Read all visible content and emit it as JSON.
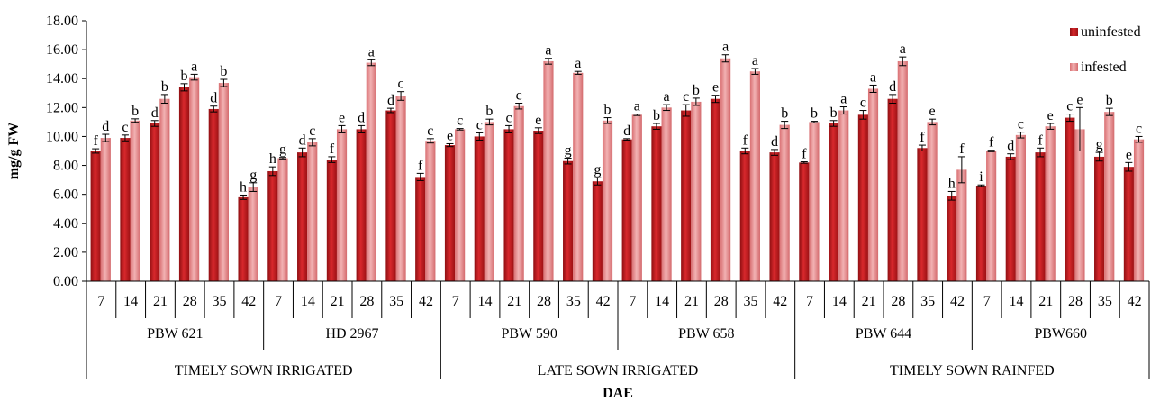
{
  "chart_data": {
    "type": "bar",
    "ylabel": "mg/g FW",
    "xlabel": "DAE",
    "ylim": [
      0,
      18
    ],
    "y_ticks": [
      "0.00",
      "2.00",
      "4.00",
      "6.00",
      "8.00",
      "10.00",
      "12.00",
      "14.00",
      "16.00",
      "18.00"
    ],
    "grid": false,
    "legend_position": "top-right",
    "colors": {
      "uninfested": "#c4161c",
      "infested": "#e58a8c"
    },
    "groups": [
      {
        "name": "TIMELY SOWN IRRIGATED",
        "varieties": [
          "PBW 621",
          "HD 2967"
        ]
      },
      {
        "name": "LATE SOWN IRRIGATED",
        "varieties": [
          "PBW 590",
          "PBW 658"
        ]
      },
      {
        "name": "TIMELY SOWN RAINFED",
        "varieties": [
          "PBW 644",
          "PBW660"
        ]
      }
    ],
    "varieties": [
      {
        "name": "PBW 621",
        "days": [
          "7",
          "14",
          "21",
          "28",
          "35",
          "42"
        ],
        "uninfested": [
          9.0,
          9.9,
          10.9,
          13.4,
          11.9,
          5.8
        ],
        "infested": [
          9.9,
          11.1,
          12.6,
          14.1,
          13.7,
          6.5
        ],
        "letters_uninfested": [
          "f",
          "c",
          "d",
          "b",
          "d",
          "h"
        ],
        "letters_infested": [
          "d",
          "b",
          "b",
          "a",
          "b",
          "g"
        ],
        "err_uninfested": [
          0.15,
          0.2,
          0.2,
          0.25,
          0.2,
          0.15
        ],
        "err_infested": [
          0.25,
          0.12,
          0.3,
          0.2,
          0.25,
          0.3
        ]
      },
      {
        "name": "HD 2967",
        "days": [
          "7",
          "14",
          "21",
          "28",
          "35",
          "42"
        ],
        "uninfested": [
          7.6,
          8.9,
          8.4,
          10.5,
          11.8,
          7.2
        ],
        "infested": [
          8.5,
          9.6,
          10.5,
          15.1,
          12.8,
          9.7
        ],
        "letters_uninfested": [
          "h",
          "d",
          "f",
          "d",
          "d",
          "f"
        ],
        "letters_infested": [
          "g",
          "c",
          "e",
          "a",
          "c",
          "c"
        ],
        "err_uninfested": [
          0.3,
          0.3,
          0.2,
          0.25,
          0.15,
          0.25
        ],
        "err_infested": [
          0.05,
          0.25,
          0.25,
          0.2,
          0.3,
          0.15
        ]
      },
      {
        "name": "PBW 590",
        "days": [
          "7",
          "14",
          "21",
          "28",
          "35",
          "42"
        ],
        "uninfested": [
          9.4,
          10.0,
          10.5,
          10.4,
          8.3,
          6.9
        ],
        "infested": [
          10.5,
          11.0,
          12.1,
          15.2,
          14.4,
          11.1
        ],
        "letters_uninfested": [
          "e",
          "c",
          "c",
          "e",
          "g",
          "g"
        ],
        "letters_infested": [
          "c",
          "b",
          "c",
          "a",
          "a",
          "b"
        ],
        "err_uninfested": [
          0.1,
          0.25,
          0.25,
          0.2,
          0.2,
          0.25
        ],
        "err_infested": [
          0.05,
          0.2,
          0.2,
          0.2,
          0.1,
          0.2
        ]
      },
      {
        "name": "PBW 658",
        "days": [
          "7",
          "14",
          "21",
          "28",
          "35",
          "42"
        ],
        "uninfested": [
          9.8,
          10.7,
          11.8,
          12.6,
          9.0,
          8.9
        ],
        "infested": [
          11.5,
          12.0,
          12.4,
          15.4,
          14.5,
          10.8
        ],
        "letters_uninfested": [
          "d",
          "b",
          "c",
          "e",
          "f",
          "d"
        ],
        "letters_infested": [
          "a",
          "a",
          "b",
          "a",
          "a",
          "b"
        ],
        "err_uninfested": [
          0.05,
          0.2,
          0.4,
          0.25,
          0.2,
          0.2
        ],
        "err_infested": [
          0.05,
          0.2,
          0.25,
          0.25,
          0.2,
          0.25
        ]
      },
      {
        "name": "PBW 644",
        "days": [
          "7",
          "14",
          "21",
          "28",
          "35",
          "42"
        ],
        "uninfested": [
          8.2,
          10.9,
          11.5,
          12.6,
          9.2,
          5.9
        ],
        "infested": [
          11.0,
          11.8,
          13.3,
          15.2,
          11.0,
          7.7
        ],
        "letters_uninfested": [
          "f",
          "b",
          "c",
          "d",
          "f",
          "h"
        ],
        "letters_infested": [
          "b",
          "a",
          "a",
          "a",
          "e",
          "f"
        ],
        "err_uninfested": [
          0.05,
          0.2,
          0.3,
          0.3,
          0.2,
          0.3
        ],
        "err_infested": [
          0.05,
          0.25,
          0.25,
          0.3,
          0.2,
          0.9
        ]
      },
      {
        "name": "PBW660",
        "days": [
          "7",
          "14",
          "21",
          "28",
          "35",
          "42"
        ],
        "uninfested": [
          6.6,
          8.6,
          8.9,
          11.3,
          8.6,
          7.9
        ],
        "infested": [
          9.0,
          10.1,
          10.7,
          10.5,
          11.7,
          9.8
        ],
        "letters_uninfested": [
          "i",
          "d",
          "f",
          "c",
          "g",
          "e"
        ],
        "letters_infested": [
          "f",
          "c",
          "e",
          "e",
          "b",
          "c"
        ],
        "err_uninfested": [
          0.05,
          0.2,
          0.3,
          0.25,
          0.3,
          0.3
        ],
        "err_infested": [
          0.05,
          0.2,
          0.2,
          1.5,
          0.25,
          0.2
        ]
      }
    ],
    "series": [
      {
        "name": "uninfested"
      },
      {
        "name": "infested"
      }
    ]
  }
}
